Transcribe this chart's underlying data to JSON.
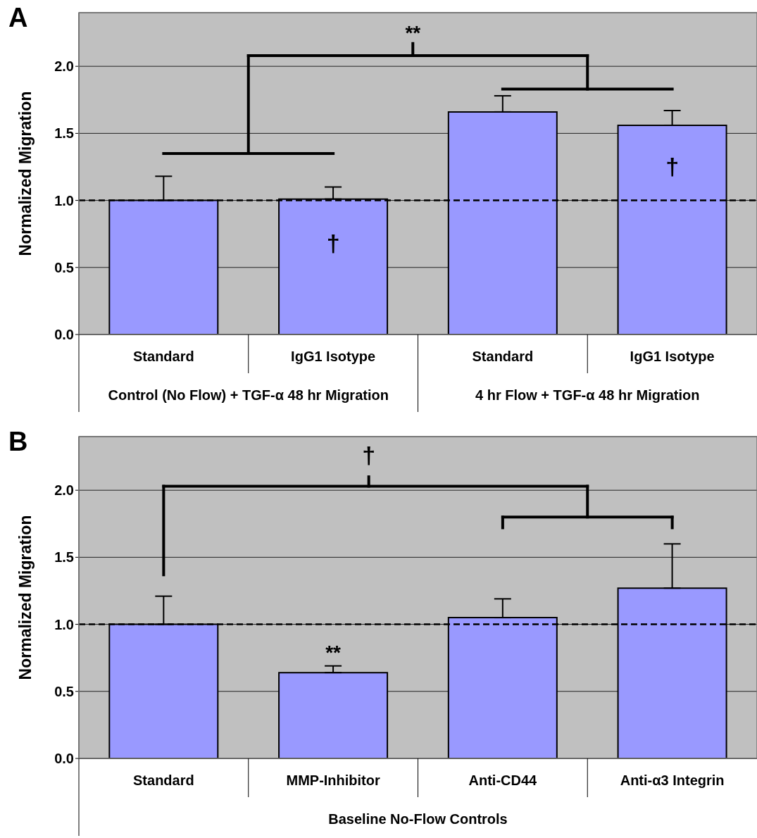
{
  "chart_data": [
    {
      "type": "bar",
      "title": "A",
      "ylabel": "Normalized Migration",
      "categories": [
        "Standard",
        "IgG1 Isotype",
        "Standard",
        "IgG1 Isotype"
      ],
      "values": [
        1.0,
        1.01,
        1.66,
        1.56
      ],
      "color": "#9999ff",
      "errors": [
        [
          1.0,
          1.18
        ],
        [
          1.01,
          1.1
        ],
        [
          1.66,
          1.78
        ],
        [
          1.56,
          1.67
        ]
      ],
      "ylim": [
        0,
        2.4
      ],
      "yticks": [
        {
          "value": 0,
          "label": "0.0"
        },
        {
          "value": 0.5,
          "label": "0.5"
        },
        {
          "value": 1,
          "label": "1.0"
        },
        {
          "value": 1.5,
          "label": "1.5"
        },
        {
          "value": 2,
          "label": "2.0"
        }
      ],
      "grid": "y",
      "ref_lines": [
        {
          "axis": "y",
          "value": 1,
          "line_style": "dashed",
          "color": "#000000"
        }
      ],
      "annotations": [
        "**",
        "†",
        "†",
        "Control (No Flow) + TGF-α 48 hr Migration",
        "4 hr Flow + TGF-α 48 hr Migration"
      ]
    },
    {
      "type": "bar",
      "title": "B",
      "ylabel": "Normalized Migration",
      "xlabel": "Baseline No-Flow Controls",
      "categories": [
        "Standard",
        "MMP-Inhibitor",
        "Anti-CD44",
        "Anti-α3 Integrin"
      ],
      "values": [
        1.0,
        0.64,
        1.05,
        1.27
      ],
      "color": "#9999ff",
      "errors": [
        [
          1.0,
          1.21
        ],
        [
          0.64,
          0.69
        ],
        [
          1.05,
          1.19
        ],
        [
          1.27,
          1.6
        ]
      ],
      "ylim": [
        0,
        2.4
      ],
      "yticks": [
        {
          "value": 0,
          "label": "0.0"
        },
        {
          "value": 0.5,
          "label": "0.5"
        },
        {
          "value": 1,
          "label": "1.0"
        },
        {
          "value": 1.5,
          "label": "1.5"
        },
        {
          "value": 2,
          "label": "2.0"
        }
      ],
      "grid": "y",
      "ref_lines": [
        {
          "axis": "y",
          "value": 1,
          "line_style": "dashed",
          "color": "#000000"
        }
      ],
      "annotations": [
        "†",
        "**"
      ]
    }
  ]
}
